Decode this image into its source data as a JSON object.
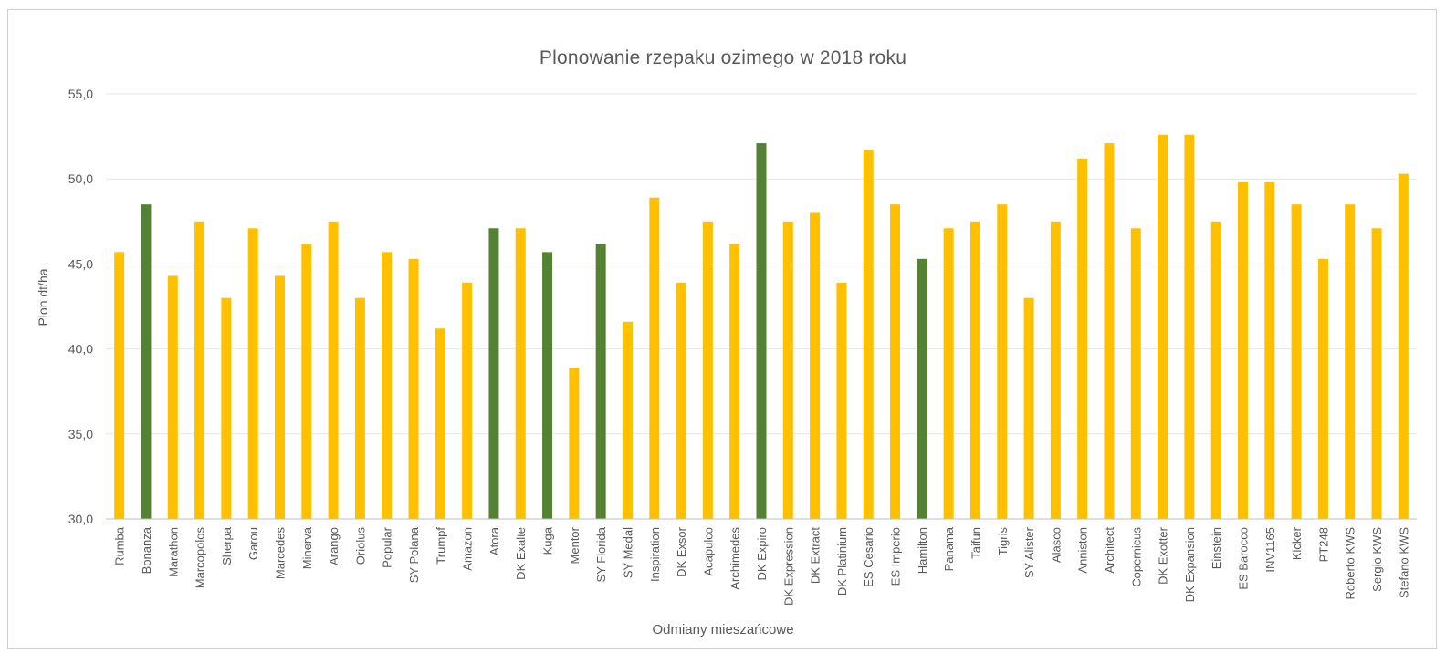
{
  "chart_data": {
    "type": "bar",
    "title": "Plonowanie rzepaku ozimego w 2018 roku",
    "xlabel": "Odmiany mieszańcowe",
    "ylabel": "Plon dt/ha",
    "ylim": [
      30,
      55
    ],
    "yticks": [
      "30,0",
      "35,0",
      "40,0",
      "45,0",
      "50,0",
      "55,0"
    ],
    "grid": true,
    "colors": {
      "default": "#FFC000",
      "highlight": "#548235",
      "grid": "#e6e6e6",
      "axis": "#bfbfbf",
      "text": "#595959"
    },
    "categories": [
      "Rumba",
      "Bonanza",
      "Marathon",
      "Marcopolos",
      "Sherpa",
      "Garou",
      "Marcedes",
      "Minerva",
      "Arango",
      "Oriolus",
      "Popular",
      "SY Polana",
      "Trumpf",
      "Amazon",
      "Atora",
      "DK Exalte",
      "Kuga",
      "Mentor",
      "SY Florida",
      "SY Medal",
      "Inspiration",
      "DK Exsor",
      "Acapulco",
      "Archimedes",
      "DK Expiro",
      "DK Expression",
      "DK Extract",
      "DK Platinium",
      "ES Cesario",
      "ES Imperio",
      "Hamilton",
      "Panama",
      "Taifun",
      "Tigris",
      "SY Alister",
      "Alasco",
      "Anniston",
      "Architect",
      "Copernicus",
      "DK Exotter",
      "DK Expansion",
      "Einstein",
      "ES Barocco",
      "INV1165",
      "Kicker",
      "PT248",
      "Roberto KWS",
      "Sergio KWS",
      "Stefano KWS"
    ],
    "values": [
      45.7,
      48.5,
      44.3,
      47.5,
      43.0,
      47.1,
      44.3,
      46.2,
      47.5,
      43.0,
      45.7,
      45.3,
      41.2,
      43.9,
      47.1,
      47.1,
      45.7,
      38.9,
      46.2,
      41.6,
      48.9,
      43.9,
      47.5,
      46.2,
      52.1,
      47.5,
      48.0,
      43.9,
      51.7,
      48.5,
      45.3,
      47.1,
      47.5,
      48.5,
      43.0,
      47.5,
      51.2,
      52.1,
      47.1,
      52.6,
      52.6,
      47.5,
      49.8,
      49.8,
      48.5,
      45.3,
      48.5,
      47.1,
      50.3
    ],
    "highlighted": [
      "Bonanza",
      "Atora",
      "Kuga",
      "SY Florida",
      "DK Expiro",
      "Hamilton"
    ]
  }
}
